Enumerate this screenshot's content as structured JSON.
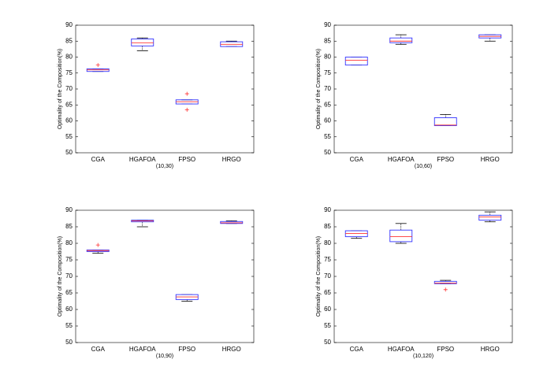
{
  "chart_data": [
    {
      "type": "box",
      "xlabel": "(10,30)",
      "ylabel": "Optimality of the Composition(%)",
      "categories": [
        "CGA",
        "HGAFOA",
        "FPSO",
        "HRGO"
      ],
      "ylim": [
        50,
        90
      ],
      "yticks": [
        50,
        55,
        60,
        65,
        70,
        75,
        80,
        85,
        90
      ],
      "box_color": "#3333ff",
      "median_color": "#ff3333",
      "whisker_color": "#000000",
      "flier_color": "#ff3333",
      "boxes": [
        {
          "whislo": 75.5,
          "q1": 75.5,
          "med": 76,
          "q3": 76.3,
          "whishi": 76.3,
          "fliers": [
            77.5
          ]
        },
        {
          "whislo": 82,
          "q1": 83.5,
          "med": 84.5,
          "q3": 85.7,
          "whishi": 86,
          "fliers": []
        },
        {
          "whislo": 65.3,
          "q1": 65.3,
          "med": 66,
          "q3": 66.6,
          "whishi": 66.6,
          "fliers": [
            68.5,
            63.5
          ]
        },
        {
          "whislo": 83.3,
          "q1": 83.3,
          "med": 84,
          "q3": 84.8,
          "whishi": 85,
          "fliers": []
        }
      ]
    },
    {
      "type": "box",
      "xlabel": "(10,60)",
      "ylabel": "Optimality of the Composition(%)",
      "categories": [
        "CGA",
        "HGAFOA",
        "FPSO",
        "HRGO"
      ],
      "ylim": [
        50,
        90
      ],
      "yticks": [
        50,
        55,
        60,
        65,
        70,
        75,
        80,
        85,
        90
      ],
      "box_color": "#3333ff",
      "median_color": "#ff3333",
      "whisker_color": "#000000",
      "flier_color": "#ff3333",
      "boxes": [
        {
          "whislo": 77.5,
          "q1": 77.5,
          "med": 79,
          "q3": 80,
          "whishi": 80,
          "fliers": []
        },
        {
          "whislo": 84,
          "q1": 84.5,
          "med": 85,
          "q3": 86,
          "whishi": 87,
          "fliers": []
        },
        {
          "whislo": 58.5,
          "q1": 58.5,
          "med": 58.7,
          "q3": 61,
          "whishi": 62,
          "fliers": []
        },
        {
          "whislo": 85,
          "q1": 86,
          "med": 86.5,
          "q3": 87,
          "whishi": 87,
          "fliers": []
        }
      ]
    },
    {
      "type": "box",
      "xlabel": "(10,90)",
      "ylabel": "Optimality of the Composition(%)",
      "categories": [
        "CGA",
        "HGAFOA",
        "FPSO",
        "HRGO"
      ],
      "ylim": [
        50,
        90
      ],
      "yticks": [
        50,
        55,
        60,
        65,
        70,
        75,
        80,
        85,
        90
      ],
      "box_color": "#3333ff",
      "median_color": "#ff3333",
      "whisker_color": "#000000",
      "flier_color": "#ff3333",
      "boxes": [
        {
          "whislo": 77,
          "q1": 77.5,
          "med": 77.8,
          "q3": 78,
          "whishi": 78,
          "fliers": [
            79.5
          ]
        },
        {
          "whislo": 85,
          "q1": 86.5,
          "med": 86.8,
          "q3": 87,
          "whishi": 87,
          "fliers": []
        },
        {
          "whislo": 62.5,
          "q1": 63,
          "med": 63.8,
          "q3": 64.5,
          "whishi": 64.5,
          "fliers": []
        },
        {
          "whislo": 86,
          "q1": 86,
          "med": 86.2,
          "q3": 86.6,
          "whishi": 86.8,
          "fliers": []
        }
      ]
    },
    {
      "type": "box",
      "xlabel": "(10,120)",
      "ylabel": "Optimality of the Composition(%)",
      "categories": [
        "CGA",
        "HGAFOA",
        "FPSO",
        "HRGO"
      ],
      "ylim": [
        50,
        90
      ],
      "yticks": [
        50,
        55,
        60,
        65,
        70,
        75,
        80,
        85,
        90
      ],
      "box_color": "#3333ff",
      "median_color": "#ff3333",
      "whisker_color": "#000000",
      "flier_color": "#ff3333",
      "boxes": [
        {
          "whislo": 81.5,
          "q1": 82,
          "med": 83,
          "q3": 83.8,
          "whishi": 83.8,
          "fliers": []
        },
        {
          "whislo": 80,
          "q1": 80.5,
          "med": 82,
          "q3": 84,
          "whishi": 86,
          "fliers": []
        },
        {
          "whislo": 67.8,
          "q1": 67.8,
          "med": 68,
          "q3": 68.5,
          "whishi": 68.8,
          "fliers": [
            66
          ]
        },
        {
          "whislo": 86.5,
          "q1": 87,
          "med": 88,
          "q3": 88.5,
          "whishi": 89.5,
          "fliers": []
        }
      ]
    }
  ]
}
